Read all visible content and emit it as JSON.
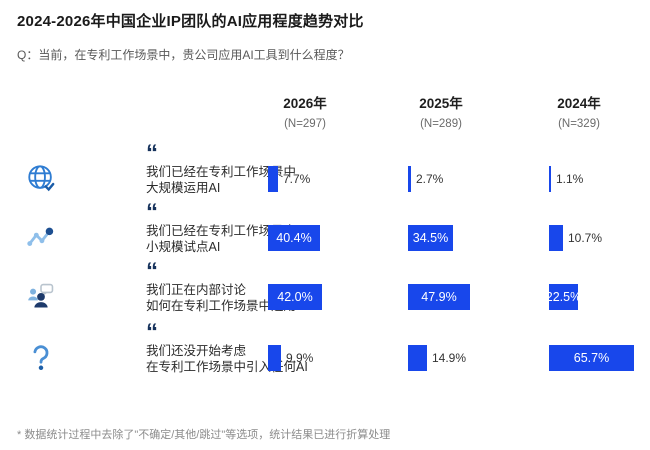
{
  "title": "2024-2026年中国企业IP团队的AI应用程度趋势对比",
  "question": "Q：当前，在专利工作场景中，贵公司应用AI工具到什么程度？",
  "quote_glyph": "“",
  "footnote": "* 数据统计过程中去除了\"不确定/其他/跳过\"等选项，统计结果已进行折算处理",
  "columns": [
    {
      "year": "2026年",
      "n": "(N=297)"
    },
    {
      "year": "2025年",
      "n": "(N=289)"
    },
    {
      "year": "2024年",
      "n": "(N=329)"
    }
  ],
  "rows": [
    {
      "icon": "globe-icon",
      "line1": "我们已经在专利工作场景中",
      "line2": "大规模运用AI",
      "values": [
        7.7,
        2.7,
        1.1
      ],
      "labels": [
        "7.7%",
        "2.7%",
        "1.1%"
      ]
    },
    {
      "icon": "trend-icon",
      "line1": "我们已经在专利工作场景中",
      "line2": "小规模试点AI",
      "values": [
        40.4,
        34.5,
        10.7
      ],
      "labels": [
        "40.4%",
        "34.5%",
        "10.7%"
      ]
    },
    {
      "icon": "discussion-icon",
      "line1": "我们正在内部讨论",
      "line2": "如何在专利工作场景中运用AI",
      "values": [
        42.0,
        47.9,
        22.5
      ],
      "labels": [
        "42.0%",
        "47.9%",
        "22.5%"
      ]
    },
    {
      "icon": "question-icon",
      "line1": "我们还没开始考虑",
      "line2": "在专利工作场景中引入任何AI",
      "values": [
        9.9,
        14.9,
        65.7
      ],
      "labels": [
        "9.9%",
        "14.9%",
        "65.7%"
      ]
    }
  ],
  "colors": {
    "bar": "#1847eb",
    "quote": "#16325c",
    "icon_blue": "#2e7cd2",
    "icon_light_blue": "#8fbfea",
    "icon_dark_navy": "#1d3a6b",
    "label_in": "#ffffff",
    "label_out": "#333333"
  },
  "chart_data": {
    "type": "bar",
    "orientation": "horizontal",
    "title": "2024-2026年中国企业IP团队的AI应用程度趋势对比",
    "subtitle": "Q：当前，在专利工作场景中，贵公司应用AI工具到什么程度？",
    "unit": "%",
    "categories": [
      "我们已经在专利工作场景中大规模运用AI",
      "我们已经在专利工作场景中小规模试点AI",
      "我们正在内部讨论如何在专利工作场景中运用AI",
      "我们还没开始考虑在专利工作场景中引入任何AI"
    ],
    "series": [
      {
        "name": "2026年",
        "sample": "N=297",
        "values": [
          7.7,
          40.4,
          42.0,
          9.9
        ]
      },
      {
        "name": "2025年",
        "sample": "N=289",
        "values": [
          2.7,
          34.5,
          47.9,
          14.9
        ]
      },
      {
        "name": "2024年",
        "sample": "N=329",
        "values": [
          1.1,
          10.7,
          22.5,
          65.7
        ]
      }
    ],
    "xlim": [
      0,
      100
    ],
    "grid": false,
    "legend_position": "column-headers",
    "annotation": "* 数据统计过程中去除了\"不确定/其他/跳过\"等选项，统计结果已进行折算处理"
  }
}
